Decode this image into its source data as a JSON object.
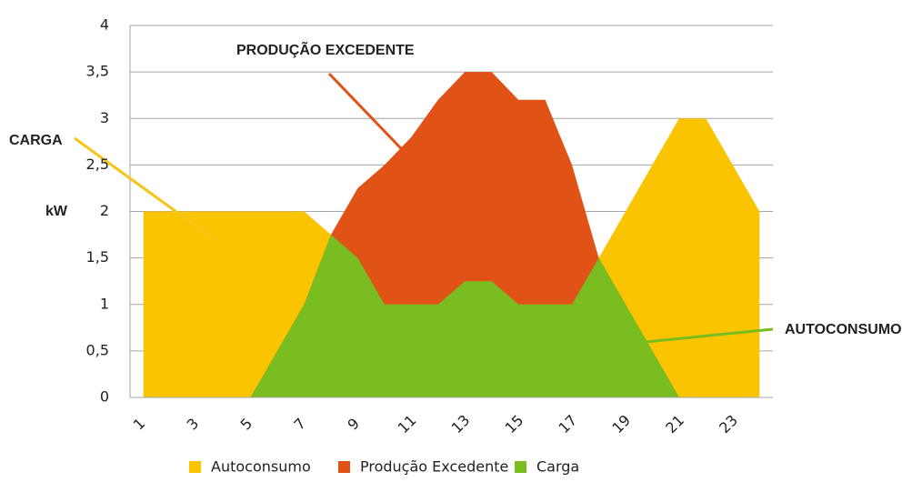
{
  "chart_data": {
    "type": "area",
    "y_label": "kW",
    "categories": [
      "1",
      null,
      "3",
      null,
      "5",
      null,
      "7",
      null,
      "9",
      null,
      "11",
      null,
      "13",
      null,
      "15",
      null,
      "17",
      null,
      "19",
      null,
      "21",
      null,
      "23",
      null
    ],
    "series": [
      {
        "name": "Autoconsumo",
        "color": "#fac400",
        "values": [
          2,
          2,
          2,
          2,
          2,
          2,
          2,
          1.75,
          1.5,
          1,
          1,
          1,
          1.25,
          1.25,
          1,
          1,
          1,
          1.5,
          2,
          2.5,
          3,
          3,
          2.5,
          2
        ]
      },
      {
        "name": "Produção Excedente",
        "color": "#e05216",
        "values": [
          0,
          0,
          0,
          0,
          0,
          0.5,
          1,
          1.75,
          2.25,
          2.5,
          2.8,
          3.2,
          3.5,
          3.5,
          3.2,
          3.2,
          2.5,
          1.5,
          1,
          0.5,
          0,
          0,
          0,
          0
        ]
      },
      {
        "name": "Carga",
        "color": "#7abd21",
        "values": [
          0,
          0,
          0,
          0,
          0,
          0.5,
          1,
          1.75,
          1.5,
          1,
          1,
          1,
          1.25,
          1.25,
          1,
          1,
          1,
          1.5,
          1,
          0.5,
          0,
          0,
          0,
          0
        ]
      }
    ],
    "ylim": [
      0,
      4
    ],
    "yticks": [
      0,
      {
        "value": 0.5,
        "label": "0,5"
      },
      1,
      {
        "value": 1.5,
        "label": "1,5"
      },
      2,
      {
        "value": 2.5,
        "label": "2,5"
      },
      3,
      {
        "value": 3.5,
        "label": "3,5"
      },
      4
    ],
    "grid": true,
    "annotations": [
      "CARGA",
      "PRODUÇÃO EXCEDENTE",
      "AUTOCONSUMO"
    ]
  }
}
